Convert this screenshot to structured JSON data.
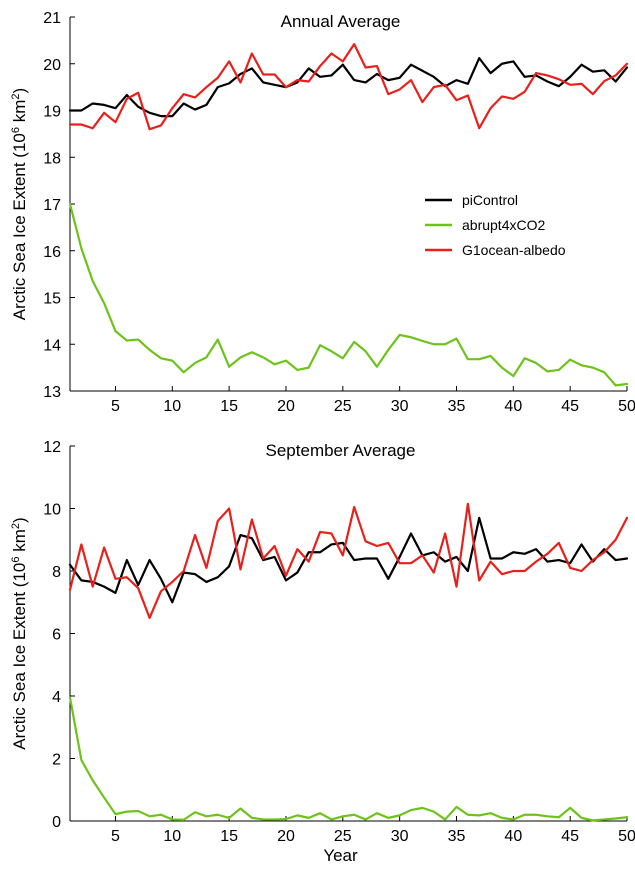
{
  "chart_data": [
    {
      "type": "line",
      "title": "Annual Average",
      "xlabel": "",
      "ylabel_main": "Arctic Sea Ice Extent (10",
      "ylabel_sup": "6",
      "ylabel_unit": " km",
      "ylabel_sup2": "2",
      "ylabel_close": ")",
      "xlim": [
        1,
        50
      ],
      "ylim": [
        13,
        21
      ],
      "xticks": [
        5,
        10,
        15,
        20,
        25,
        30,
        35,
        40,
        45,
        50
      ],
      "yticks": [
        13,
        14,
        15,
        16,
        17,
        18,
        19,
        20,
        21
      ],
      "legend": {
        "placement": "right-middle"
      },
      "series": [
        {
          "name": "piControl",
          "color": "#000000",
          "x": [
            1,
            2,
            3,
            4,
            5,
            6,
            7,
            8,
            9,
            10,
            11,
            12,
            13,
            14,
            15,
            16,
            17,
            18,
            19,
            20,
            21,
            22,
            23,
            24,
            25,
            26,
            27,
            28,
            29,
            30,
            31,
            32,
            33,
            34,
            35,
            36,
            37,
            38,
            39,
            40,
            41,
            42,
            43,
            44,
            45,
            46,
            47,
            48,
            49,
            50
          ],
          "values": [
            19.0,
            19.0,
            19.15,
            19.12,
            19.05,
            19.33,
            19.08,
            18.95,
            18.88,
            18.88,
            19.15,
            19.02,
            19.12,
            19.5,
            19.58,
            19.78,
            19.9,
            19.6,
            19.55,
            19.5,
            19.6,
            19.9,
            19.72,
            19.75,
            19.98,
            19.65,
            19.6,
            19.78,
            19.65,
            19.7,
            19.98,
            19.85,
            19.72,
            19.52,
            19.65,
            19.57,
            20.12,
            19.8,
            20.0,
            20.05,
            19.72,
            19.75,
            19.62,
            19.52,
            19.72,
            19.98,
            19.83,
            19.86,
            19.62,
            19.92
          ]
        },
        {
          "name": "abrupt4xCO2",
          "color": "#6ec31b",
          "x": [
            1,
            2,
            3,
            4,
            5,
            6,
            7,
            8,
            9,
            10,
            11,
            12,
            13,
            14,
            15,
            16,
            17,
            18,
            19,
            20,
            21,
            22,
            23,
            24,
            25,
            26,
            27,
            28,
            29,
            30,
            31,
            32,
            33,
            34,
            35,
            36,
            37,
            38,
            39,
            40,
            41,
            42,
            43,
            44,
            45,
            46,
            47,
            48,
            49,
            50
          ],
          "values": [
            17.0,
            16.05,
            15.35,
            14.88,
            14.28,
            14.08,
            14.1,
            13.88,
            13.7,
            13.65,
            13.4,
            13.6,
            13.72,
            14.1,
            13.52,
            13.72,
            13.83,
            13.72,
            13.57,
            13.65,
            13.45,
            13.5,
            13.98,
            13.85,
            13.7,
            14.05,
            13.85,
            13.52,
            13.88,
            14.2,
            14.15,
            14.07,
            14.0,
            14.0,
            14.12,
            13.68,
            13.68,
            13.75,
            13.5,
            13.32,
            13.7,
            13.6,
            13.42,
            13.45,
            13.67,
            13.55,
            13.5,
            13.4,
            13.12,
            13.15
          ]
        },
        {
          "name": "G1ocean-albedo",
          "color": "#e8201c",
          "x": [
            1,
            2,
            3,
            4,
            5,
            6,
            7,
            8,
            9,
            10,
            11,
            12,
            13,
            14,
            15,
            16,
            17,
            18,
            19,
            20,
            21,
            22,
            23,
            24,
            25,
            26,
            27,
            28,
            29,
            30,
            31,
            32,
            33,
            34,
            35,
            36,
            37,
            38,
            39,
            40,
            41,
            42,
            43,
            44,
            45,
            46,
            47,
            48,
            49,
            50
          ],
          "values": [
            18.7,
            18.7,
            18.62,
            18.95,
            18.75,
            19.25,
            19.38,
            18.6,
            18.68,
            19.05,
            19.35,
            19.28,
            19.5,
            19.7,
            20.05,
            19.6,
            20.22,
            19.77,
            19.77,
            19.5,
            19.65,
            19.62,
            19.95,
            20.22,
            20.05,
            20.42,
            19.92,
            19.95,
            19.35,
            19.45,
            19.65,
            19.18,
            19.5,
            19.55,
            19.22,
            19.32,
            18.62,
            19.05,
            19.3,
            19.25,
            19.4,
            19.8,
            19.75,
            19.67,
            19.55,
            19.57,
            19.35,
            19.63,
            19.75,
            20.0
          ]
        }
      ]
    },
    {
      "type": "line",
      "title": "September Average",
      "xlabel": "Year",
      "ylabel_main": "Arctic Sea Ice Extent (10",
      "ylabel_sup": "6",
      "ylabel_unit": " km",
      "ylabel_sup2": "2",
      "ylabel_close": ")",
      "xlim": [
        1,
        50
      ],
      "ylim": [
        0,
        12
      ],
      "xticks": [
        5,
        10,
        15,
        20,
        25,
        30,
        35,
        40,
        45,
        50
      ],
      "yticks": [
        0,
        2,
        4,
        6,
        8,
        10,
        12
      ],
      "series": [
        {
          "name": "piControl",
          "color": "#000000",
          "x": [
            1,
            2,
            3,
            4,
            5,
            6,
            7,
            8,
            9,
            10,
            11,
            12,
            13,
            14,
            15,
            16,
            17,
            18,
            19,
            20,
            21,
            22,
            23,
            24,
            25,
            26,
            27,
            28,
            29,
            30,
            31,
            32,
            33,
            34,
            35,
            36,
            37,
            38,
            39,
            40,
            41,
            42,
            43,
            44,
            45,
            46,
            47,
            48,
            49,
            50
          ],
          "values": [
            8.2,
            7.7,
            7.65,
            7.5,
            7.3,
            8.35,
            7.55,
            8.35,
            7.75,
            7.0,
            7.95,
            7.9,
            7.65,
            7.8,
            8.15,
            9.15,
            9.05,
            8.35,
            8.45,
            7.7,
            7.95,
            8.6,
            8.6,
            8.85,
            8.9,
            8.35,
            8.4,
            8.4,
            7.75,
            8.45,
            9.2,
            8.5,
            8.6,
            8.3,
            8.45,
            8.0,
            9.7,
            8.4,
            8.4,
            8.6,
            8.55,
            8.7,
            8.3,
            8.35,
            8.25,
            8.85,
            8.3,
            8.7,
            8.35,
            8.4
          ]
        },
        {
          "name": "abrupt4xCO2",
          "color": "#6ec31b",
          "x": [
            1,
            2,
            3,
            4,
            5,
            6,
            7,
            8,
            9,
            10,
            11,
            12,
            13,
            14,
            15,
            16,
            17,
            18,
            19,
            20,
            21,
            22,
            23,
            24,
            25,
            26,
            27,
            28,
            29,
            30,
            31,
            32,
            33,
            34,
            35,
            36,
            37,
            38,
            39,
            40,
            41,
            42,
            43,
            44,
            45,
            46,
            47,
            48,
            49,
            50
          ],
          "values": [
            3.95,
            1.95,
            1.3,
            0.75,
            0.22,
            0.3,
            0.32,
            0.15,
            0.2,
            0.05,
            0.04,
            0.28,
            0.15,
            0.2,
            0.1,
            0.4,
            0.1,
            0.05,
            0.05,
            0.06,
            0.18,
            0.1,
            0.25,
            0.05,
            0.15,
            0.2,
            0.05,
            0.25,
            0.1,
            0.18,
            0.35,
            0.42,
            0.3,
            0.05,
            0.45,
            0.2,
            0.18,
            0.25,
            0.1,
            0.05,
            0.2,
            0.2,
            0.15,
            0.12,
            0.42,
            0.1,
            0.02,
            0.05,
            0.08,
            0.12
          ]
        },
        {
          "name": "G1ocean-albedo",
          "color": "#e8201c",
          "x": [
            1,
            2,
            3,
            4,
            5,
            6,
            7,
            8,
            9,
            10,
            11,
            12,
            13,
            14,
            15,
            16,
            17,
            18,
            19,
            20,
            21,
            22,
            23,
            24,
            25,
            26,
            27,
            28,
            29,
            30,
            31,
            32,
            33,
            34,
            35,
            36,
            37,
            38,
            39,
            40,
            41,
            42,
            43,
            44,
            45,
            46,
            47,
            48,
            49,
            50
          ],
          "values": [
            7.4,
            8.85,
            7.5,
            8.75,
            7.75,
            7.8,
            7.45,
            6.5,
            7.35,
            7.65,
            8.0,
            9.15,
            8.1,
            9.6,
            10.0,
            8.05,
            9.65,
            8.4,
            8.8,
            7.85,
            8.7,
            8.3,
            9.25,
            9.2,
            8.5,
            10.05,
            8.95,
            8.8,
            8.9,
            8.25,
            8.25,
            8.5,
            7.95,
            9.2,
            7.5,
            10.15,
            7.7,
            8.3,
            7.9,
            8.0,
            8.0,
            8.3,
            8.55,
            8.9,
            8.1,
            8.0,
            8.35,
            8.6,
            9.0,
            9.7
          ]
        }
      ]
    }
  ]
}
